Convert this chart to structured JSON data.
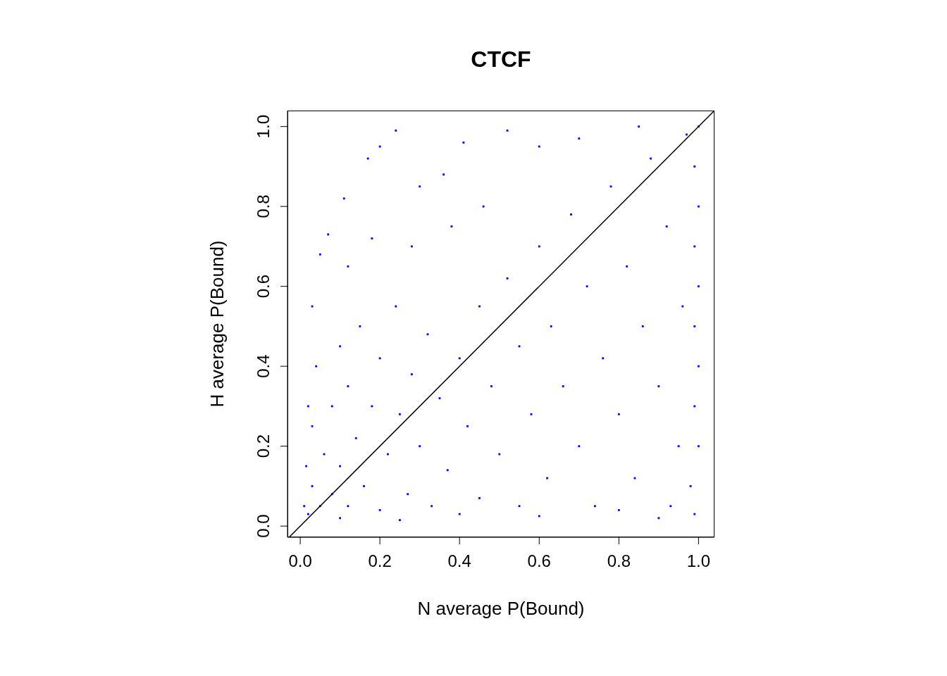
{
  "chart_data": {
    "type": "scatter",
    "title": "CTCF",
    "xlabel": "N average P(Bound)",
    "ylabel": "H average P(Bound)",
    "xlim": [
      -0.032,
      1.04
    ],
    "ylim": [
      -0.028,
      1.04
    ],
    "xticks": [
      {
        "value": 0,
        "label": "0.0"
      },
      {
        "value": 0.2,
        "label": "0.2"
      },
      {
        "value": 0.4,
        "label": "0.4"
      },
      {
        "value": 0.6,
        "label": "0.6"
      },
      {
        "value": 0.8,
        "label": "0.8"
      },
      {
        "value": 1,
        "label": "1.0"
      }
    ],
    "yticks": [
      {
        "value": 0,
        "label": "0.0"
      },
      {
        "value": 0.2,
        "label": "0.2"
      },
      {
        "value": 0.4,
        "label": "0.4"
      },
      {
        "value": 0.6,
        "label": "0.6"
      },
      {
        "value": 0.8,
        "label": "0.8"
      },
      {
        "value": 1,
        "label": "1.0"
      }
    ],
    "marker": "square",
    "series": [
      {
        "color": "#0000ff",
        "x": [
          0.02,
          0.03,
          0.03,
          0.04,
          0.05,
          0.06,
          0.08,
          0.08,
          0.1,
          0.1,
          0.12,
          0.12,
          0.14,
          0.15,
          0.16,
          0.18,
          0.2,
          0.2,
          0.22,
          0.24,
          0.25,
          0.27,
          0.28,
          0.3,
          0.32,
          0.33,
          0.35,
          0.37,
          0.4,
          0.42,
          0.45,
          0.45,
          0.48,
          0.5,
          0.52,
          0.55,
          0.55,
          0.58,
          0.6,
          0.62,
          0.63,
          0.66,
          0.68,
          0.7,
          0.72,
          0.74,
          0.76,
          0.78,
          0.8,
          0.82,
          0.84,
          0.86,
          0.88,
          0.9,
          0.92,
          0.93,
          0.95,
          0.96,
          0.97,
          0.98,
          0.99,
          0.99,
          0.99,
          0.99,
          1.0,
          1.0,
          1.0,
          1.0,
          1.0,
          0.99,
          0.24,
          0.2,
          0.17,
          0.41,
          0.52,
          0.11,
          0.07,
          0.05,
          0.03,
          0.3,
          0.36,
          0.6,
          0.7,
          0.85,
          0.46,
          0.02,
          0.015,
          0.01,
          0.12,
          0.18,
          0.28,
          0.38,
          0.1,
          0.25,
          0.4,
          0.6,
          0.8,
          0.9
        ],
        "values": [
          0.03,
          0.1,
          0.25,
          0.4,
          0.05,
          0.18,
          0.3,
          0.08,
          0.45,
          0.15,
          0.05,
          0.35,
          0.22,
          0.5,
          0.1,
          0.3,
          0.04,
          0.42,
          0.18,
          0.55,
          0.28,
          0.08,
          0.38,
          0.2,
          0.48,
          0.05,
          0.32,
          0.14,
          0.42,
          0.25,
          0.07,
          0.55,
          0.35,
          0.18,
          0.62,
          0.45,
          0.05,
          0.28,
          0.7,
          0.12,
          0.5,
          0.35,
          0.78,
          0.2,
          0.6,
          0.05,
          0.42,
          0.85,
          0.28,
          0.65,
          0.12,
          0.5,
          0.92,
          0.35,
          0.75,
          0.05,
          0.2,
          0.55,
          0.98,
          0.1,
          0.3,
          0.5,
          0.7,
          0.9,
          0.2,
          0.4,
          0.6,
          0.8,
          1.0,
          0.03,
          0.99,
          0.95,
          0.92,
          0.96,
          0.99,
          0.82,
          0.73,
          0.68,
          0.55,
          0.85,
          0.88,
          0.95,
          0.97,
          1.0,
          0.8,
          0.3,
          0.15,
          0.05,
          0.65,
          0.72,
          0.7,
          0.75,
          0.02,
          0.015,
          0.03,
          0.025,
          0.04,
          0.02
        ]
      },
      {
        "type": "line",
        "marker": "none",
        "color": "#000000",
        "x": [
          -0.028,
          1.04
        ],
        "values": [
          -0.028,
          1.04
        ]
      }
    ]
  }
}
